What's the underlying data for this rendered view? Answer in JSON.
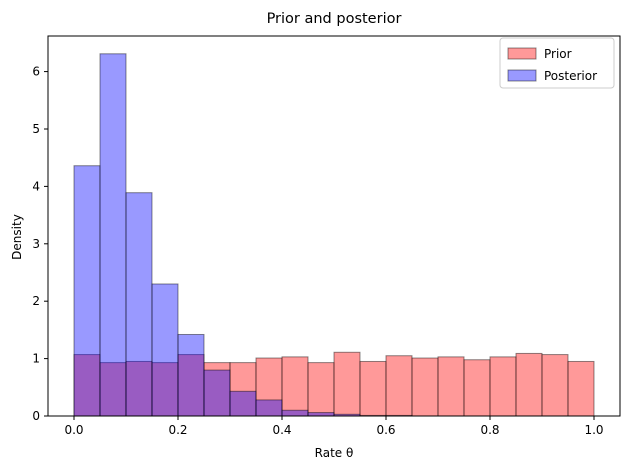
{
  "chart_data": {
    "type": "bar",
    "title": "Prior and posterior",
    "xlabel": "Rate θ",
    "ylabel": "Density",
    "xlim": [
      -0.05,
      1.05
    ],
    "ylim": [
      0,
      6.62
    ],
    "xticks": [
      0.0,
      0.2,
      0.4,
      0.6,
      0.8,
      1.0
    ],
    "xtick_labels": [
      "0.0",
      "0.2",
      "0.4",
      "0.6",
      "0.8",
      "1.0"
    ],
    "yticks": [
      0,
      1,
      2,
      3,
      4,
      5,
      6
    ],
    "ytick_labels": [
      "0",
      "1",
      "2",
      "3",
      "4",
      "5",
      "6"
    ],
    "grid": false,
    "legend_position": "top-right",
    "bin_edges": [
      0.0,
      0.05,
      0.1,
      0.15,
      0.2,
      0.25,
      0.3,
      0.35,
      0.4,
      0.45,
      0.5,
      0.55,
      0.6,
      0.65,
      0.7,
      0.75,
      0.8,
      0.85,
      0.9,
      0.95,
      1.0
    ],
    "series": [
      {
        "name": "Prior",
        "color": "#ff0000",
        "alpha": 0.4,
        "values": [
          1.07,
          0.93,
          0.95,
          0.93,
          1.07,
          0.93,
          0.93,
          1.01,
          1.03,
          0.93,
          1.11,
          0.95,
          1.05,
          1.01,
          1.03,
          0.98,
          1.03,
          1.09,
          1.07,
          0.95
        ]
      },
      {
        "name": "Posterior",
        "color": "#0000ff",
        "alpha": 0.4,
        "values": [
          4.36,
          6.31,
          3.89,
          2.3,
          1.42,
          0.8,
          0.43,
          0.28,
          0.1,
          0.06,
          0.03,
          0.01,
          0.01,
          0.0,
          0.0,
          0.0,
          0.0,
          0.0,
          0.0,
          0.0
        ]
      }
    ]
  }
}
